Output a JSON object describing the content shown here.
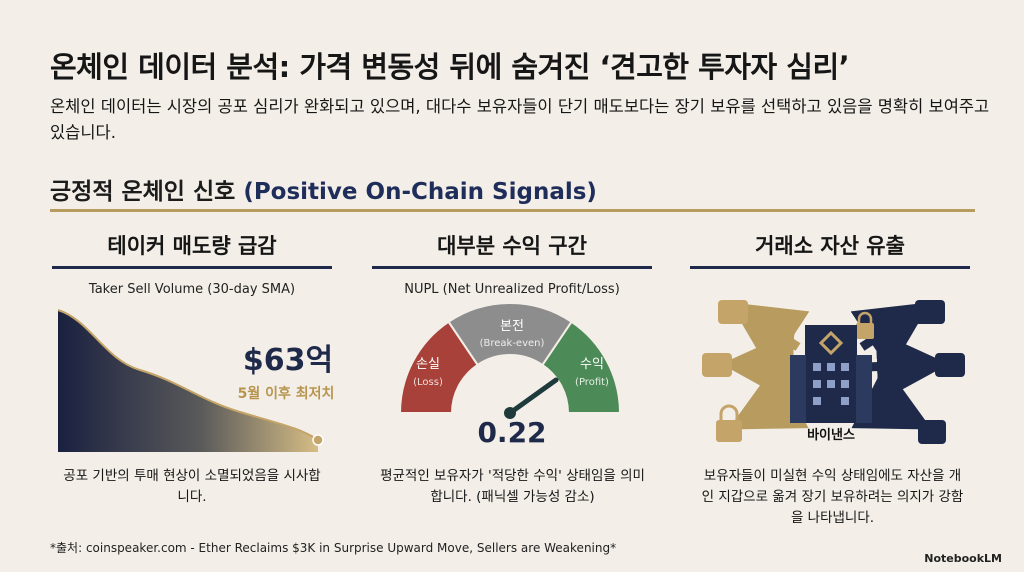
{
  "header": {
    "title": "온체인 데이터 분석: 가격 변동성 뒤에 숨겨진 ‘견고한 투자자 심리’",
    "subtitle": "온체인 데이터는 시장의 공포 심리가 완화되고 있으며, 대다수 보유자들이 단기 매도보다는 장기 보유를 선택하고 있음을 명확히 보여주고 있습니다."
  },
  "section": {
    "title_ko": "긍정적 온체인 신호",
    "title_en": "(Positive On-Chain Signals)"
  },
  "panels": [
    {
      "heading": "테이커 매도량 급감",
      "chart_label": "Taker Sell Volume (30-day SMA)",
      "highlight": "$63억",
      "highlight_note": "5월 이후 최저치",
      "caption": "공포 기반의 투매 현상이 소멸되었음을 시사합니다."
    },
    {
      "heading": "대부분 수익 구간",
      "chart_label": "NUPL (Net Unrealized Profit/Loss)",
      "zones": [
        {
          "label": "손실",
          "sub": "(Loss)"
        },
        {
          "label": "본전",
          "sub": "(Break-even)"
        },
        {
          "label": "수익",
          "sub": "(Profit)"
        }
      ],
      "value": "0.22",
      "caption": "평균적인 보유자가 '적당한 수익' 상태임을 의미합니다. (패닉셀 가능성 감소)"
    },
    {
      "heading": "거래소 자산 유출",
      "center_label": "바이낸스",
      "caption": "보유자들이 미실현 수익 상태임에도 자산을 개인 지갑으로 옮겨 장기 보유하려는 의지가 강함을 나타냅니다."
    }
  ],
  "footer": {
    "source": "*출처: coinspeaker.com - Ether Reclaims $3K in Surprise Upward Move, Sellers are Weakening*",
    "brand": "NotebookLM"
  }
}
